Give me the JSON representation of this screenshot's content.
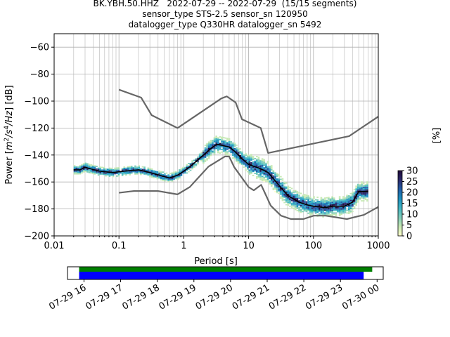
{
  "title_lines": [
    "BK.YBH.50.HHZ   2022-07-29 -- 2022-07-29  (15/15 segments)",
    "sensor_type STS-2.5 sensor_sn 120950",
    "datalogger_type Q330HR datalogger_sn 5492"
  ],
  "chart_data": [
    {
      "type": "heatmap",
      "title": "BK.YBH.50.HHZ   2022-07-29 -- 2022-07-29  (15/15 segments)",
      "xlabel": "Period [s]",
      "ylabel": "Power [m²/s⁴/Hz] [dB]",
      "x_scale": "log",
      "xlim": [
        0.01,
        1000
      ],
      "ylim": [
        -200,
        -50
      ],
      "x_ticks": [
        0.01,
        0.1,
        1,
        10,
        100,
        1000
      ],
      "x_tick_labels": [
        "0.01",
        "0.1",
        "1",
        "10",
        "100",
        "1000"
      ],
      "y_ticks": [
        -200,
        -180,
        -160,
        -140,
        -120,
        -100,
        -80,
        -60
      ],
      "grid": true,
      "colorbar": {
        "label": "[%]",
        "range": [
          0,
          30
        ],
        "ticks": [
          0,
          5,
          10,
          15,
          20,
          25,
          30
        ],
        "colormap": [
          "#ffffcc",
          "#c7e9b4",
          "#7fcdbb",
          "#41b6c4",
          "#1d91c0",
          "#225ea8",
          "#2c2a6c",
          "#1f0a3a"
        ]
      },
      "series": [
        {
          "name": "",
          "color": "#000000",
          "x": [
            0.02,
            0.025,
            0.03,
            0.035,
            0.05,
            0.08,
            0.12,
            0.2,
            0.3,
            0.5,
            0.6,
            0.8,
            1.0,
            1.3,
            1.8,
            2.5,
            3.2,
            4.0,
            5.0,
            6.0,
            8.0,
            10.0,
            15.0,
            20.0,
            30.0,
            40.0,
            60.0,
            80.0,
            100.0,
            150.0,
            200.0,
            300.0,
            400.0,
            500.0,
            700.0
          ],
          "y": [
            -151,
            -151,
            -149,
            -150,
            -152,
            -153,
            -152,
            -151,
            -153,
            -156,
            -157,
            -155,
            -152,
            -148,
            -142,
            -136,
            -132,
            -133,
            -134,
            -137,
            -143,
            -147,
            -150,
            -153,
            -163,
            -170,
            -175,
            -177,
            -178,
            -179,
            -178,
            -178,
            -175,
            -167,
            -167
          ]
        }
      ],
      "noise_models": [
        {
          "name": "",
          "x": [
            0.1,
            0.22,
            0.32,
            0.8,
            3.8,
            4.6,
            6.3,
            7.9,
            15.4,
            20.0,
            354.8,
            1000.0
          ],
          "y": [
            -91.5,
            -97.4,
            -110.5,
            -120.0,
            -98.0,
            -96.5,
            -101.0,
            -113.5,
            -120.0,
            -138.5,
            -126.0,
            -111.5
          ]
        },
        {
          "name": "",
          "x": [
            0.1,
            0.17,
            0.4,
            0.8,
            1.24,
            2.4,
            4.3,
            5.0,
            6.0,
            10.0,
            12.0,
            15.6,
            21.9,
            31.6,
            45.0,
            70.0,
            101.0,
            154.0,
            328.0,
            600.0,
            1000.0
          ],
          "y": [
            -168.0,
            -166.7,
            -166.7,
            -169.2,
            -163.7,
            -148.6,
            -141.1,
            -141.1,
            -149.0,
            -163.8,
            -166.2,
            -162.1,
            -177.5,
            -185.0,
            -187.5,
            -187.5,
            -185.0,
            -185.0,
            -187.5,
            -184.4,
            -178.5
          ]
        }
      ]
    },
    {
      "type": "bar",
      "title": "",
      "xlabel": "",
      "ylabel": "",
      "x_tick_labels": [
        "07-29 16",
        "07-29 17",
        "07-29 18",
        "07-29 19",
        "07-29 20",
        "07-29 21",
        "07-29 22",
        "07-29 23",
        "07-30 00"
      ],
      "xlim": [
        "07-29 15:33",
        "07-30 00:10"
      ],
      "series": [
        {
          "name": "",
          "color": "#008000",
          "start": "07-29 15:52",
          "end": "07-29 23:52"
        },
        {
          "name": "",
          "color": "#0000ff",
          "start": "07-29 15:52",
          "end": "07-29 23:38"
        }
      ]
    }
  ]
}
